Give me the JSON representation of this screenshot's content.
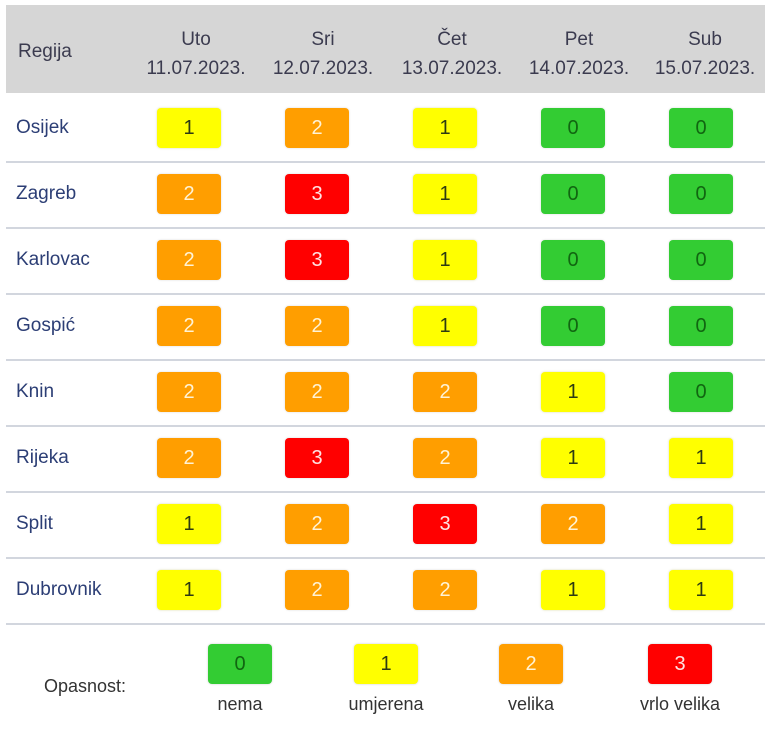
{
  "header": {
    "region_label": "Regija",
    "days": [
      {
        "day": "Uto",
        "date": "11.07.2023."
      },
      {
        "day": "Sri",
        "date": "12.07.2023."
      },
      {
        "day": "Čet",
        "date": "13.07.2023."
      },
      {
        "day": "Pet",
        "date": "14.07.2023."
      },
      {
        "day": "Sub",
        "date": "15.07.2023."
      }
    ]
  },
  "rows": [
    {
      "region": "Osijek",
      "levels": [
        "1",
        "2",
        "1",
        "0",
        "0"
      ]
    },
    {
      "region": "Zagreb",
      "levels": [
        "2",
        "3",
        "1",
        "0",
        "0"
      ]
    },
    {
      "region": "Karlovac",
      "levels": [
        "2",
        "3",
        "1",
        "0",
        "0"
      ]
    },
    {
      "region": "Gospić",
      "levels": [
        "2",
        "2",
        "1",
        "0",
        "0"
      ]
    },
    {
      "region": "Knin",
      "levels": [
        "2",
        "2",
        "2",
        "1",
        "0"
      ]
    },
    {
      "region": "Rijeka",
      "levels": [
        "2",
        "3",
        "2",
        "1",
        "1"
      ]
    },
    {
      "region": "Split",
      "levels": [
        "1",
        "2",
        "3",
        "2",
        "1"
      ]
    },
    {
      "region": "Dubrovnik",
      "levels": [
        "1",
        "2",
        "2",
        "1",
        "1"
      ]
    }
  ],
  "legend": {
    "title": "Opasnost:",
    "items": [
      {
        "value": "0",
        "label": "nema",
        "color": "#33cc33"
      },
      {
        "value": "1",
        "label": "umjerena",
        "color": "#ffff00"
      },
      {
        "value": "2",
        "label": "velika",
        "color": "#ff9e00"
      },
      {
        "value": "3",
        "label": "vrlo velika",
        "color": "#ff0000"
      }
    ]
  }
}
